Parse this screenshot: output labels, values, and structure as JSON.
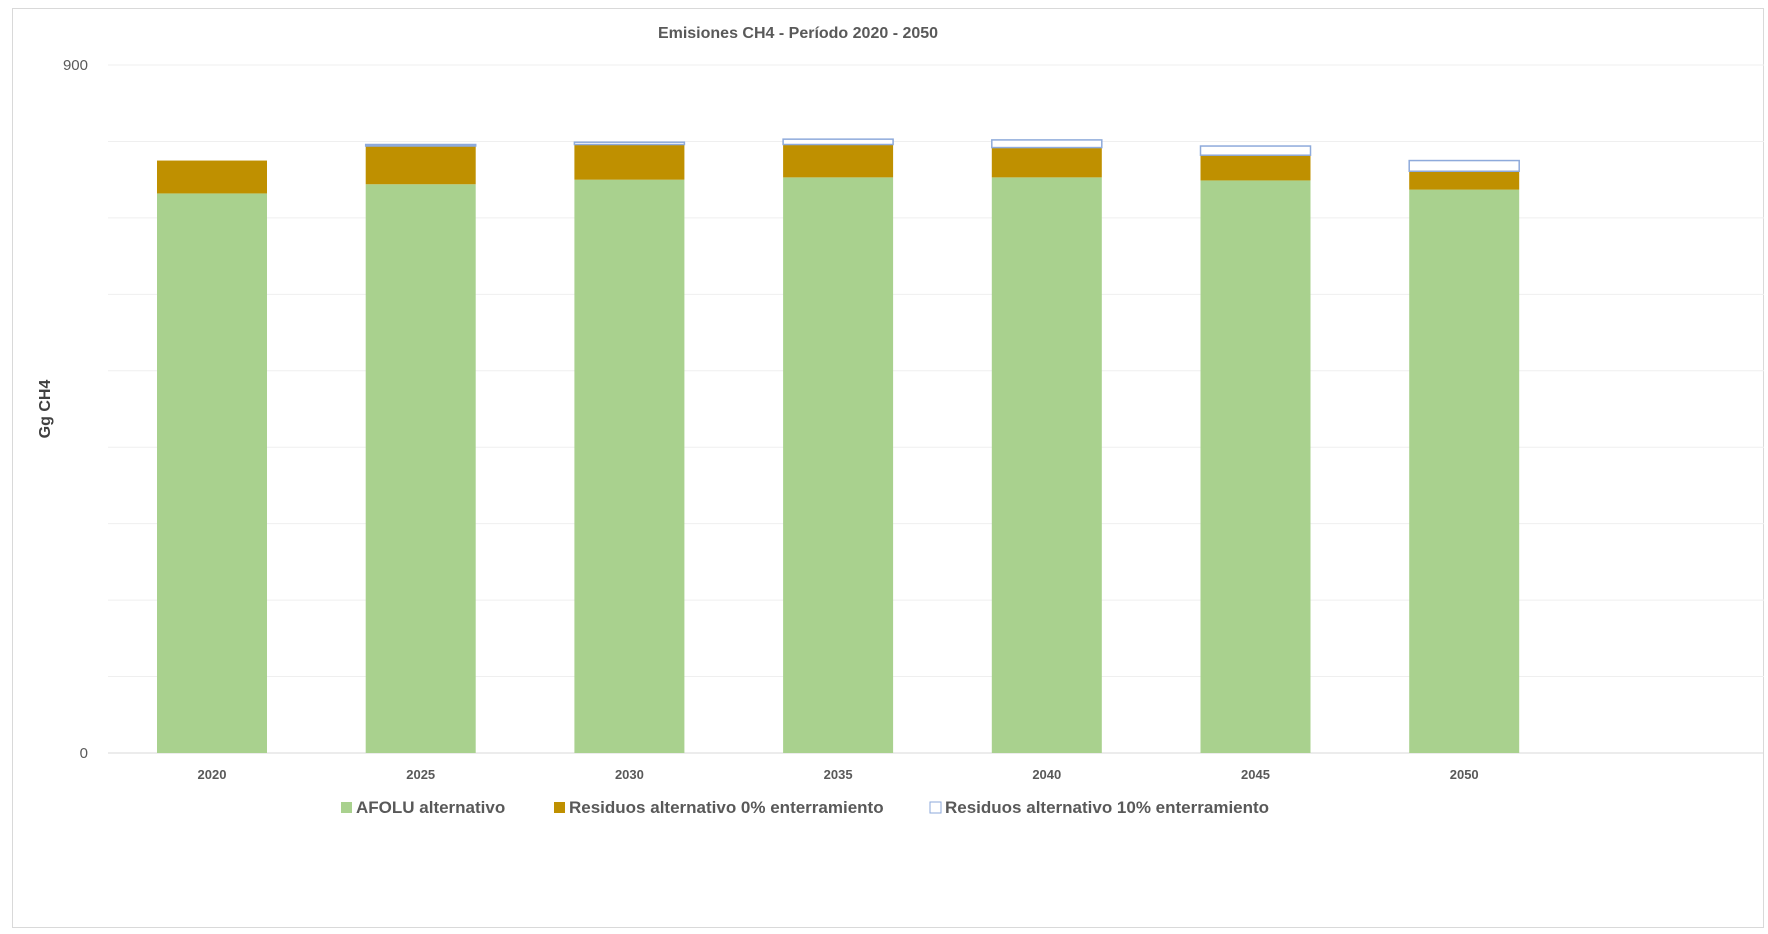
{
  "chart_data": {
    "type": "bar",
    "stacked": true,
    "title": "Emisiones CH4 - Período 2020 - 2050",
    "xlabel": "",
    "ylabel": "Gg CH4",
    "ylim": [
      0,
      900
    ],
    "ytick_labels": [
      "0",
      "900"
    ],
    "gridlines": true,
    "legend_position": "bottom",
    "categories": [
      "2020",
      "2025",
      "2030",
      "2035",
      "2040",
      "2045",
      "2050"
    ],
    "series": [
      {
        "name": "AFOLU alternativo",
        "color": "#a9d18e",
        "values": [
          732,
          744,
          750,
          753,
          753,
          749,
          737
        ]
      },
      {
        "name": "Residuos alternativo 0% enterramiento",
        "color": "#bf9000",
        "values": [
          43,
          50,
          46,
          43,
          39,
          33,
          24
        ]
      },
      {
        "name": "Residuos alternativo 10% enterramiento",
        "color": "#ffffff",
        "stroke": "#8eaadb",
        "values": [
          0,
          2,
          3,
          7,
          10,
          12,
          14
        ]
      }
    ]
  }
}
